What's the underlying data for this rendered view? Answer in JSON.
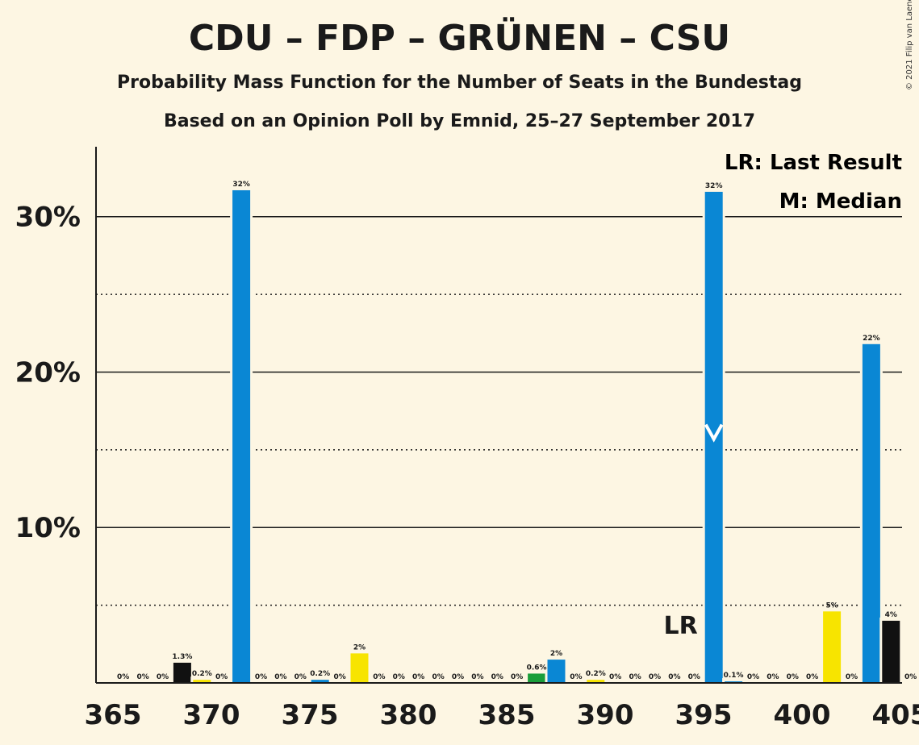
{
  "title": "CDU – FDP – GRÜNEN – CSU",
  "subtitle": "Probability Mass Function for the Number of Seats in the Bundestag",
  "subtitle2": "Based on an Opinion Poll by Emnid, 25–27 September 2017",
  "copyright": "© 2021 Filip van Laenen",
  "legend": {
    "last_result": "LR: Last Result",
    "median": "M: Median"
  },
  "colors": {
    "background": "#fdf6e3",
    "blue": "#0a87d4",
    "black": "#111111",
    "yellow": "#f7e400",
    "green": "#1a9e3a"
  },
  "chart_data": {
    "type": "bar",
    "xlim": [
      365,
      405
    ],
    "ylim": [
      0,
      34.5
    ],
    "x_ticks": [
      365,
      370,
      375,
      380,
      385,
      390,
      395,
      400,
      405
    ],
    "y_ticks": [
      {
        "value": 10,
        "label": "10%"
      },
      {
        "value": 20,
        "label": "20%"
      },
      {
        "value": 30,
        "label": "30%"
      }
    ],
    "y_dotted": [
      5,
      15,
      25
    ],
    "bars": [
      {
        "x": 366,
        "value": 0,
        "label": "0%",
        "color": "blue"
      },
      {
        "x": 367,
        "value": 0,
        "label": "0%",
        "color": "blue"
      },
      {
        "x": 368,
        "value": 0,
        "label": "0%",
        "color": "blue"
      },
      {
        "x": 369,
        "value": 1.3,
        "label": "1.3%",
        "color": "black"
      },
      {
        "x": 370,
        "value": 0.2,
        "label": "0.2%",
        "color": "yellow"
      },
      {
        "x": 371,
        "value": 0,
        "label": "0%",
        "color": "blue"
      },
      {
        "x": 372,
        "value": 31.7,
        "label": "32%",
        "color": "blue"
      },
      {
        "x": 373,
        "value": 0,
        "label": "0%",
        "color": "blue"
      },
      {
        "x": 374,
        "value": 0,
        "label": "0%",
        "color": "blue"
      },
      {
        "x": 375,
        "value": 0,
        "label": "0%",
        "color": "blue"
      },
      {
        "x": 376,
        "value": 0.2,
        "label": "0.2%",
        "color": "blue"
      },
      {
        "x": 377,
        "value": 0,
        "label": "0%",
        "color": "blue"
      },
      {
        "x": 378,
        "value": 1.9,
        "label": "2%",
        "color": "yellow"
      },
      {
        "x": 379,
        "value": 0,
        "label": "0%",
        "color": "blue"
      },
      {
        "x": 380,
        "value": 0,
        "label": "0%",
        "color": "blue"
      },
      {
        "x": 381,
        "value": 0,
        "label": "0%",
        "color": "blue"
      },
      {
        "x": 382,
        "value": 0,
        "label": "0%",
        "color": "blue"
      },
      {
        "x": 383,
        "value": 0,
        "label": "0%",
        "color": "blue"
      },
      {
        "x": 384,
        "value": 0,
        "label": "0%",
        "color": "blue"
      },
      {
        "x": 385,
        "value": 0,
        "label": "0%",
        "color": "blue"
      },
      {
        "x": 386,
        "value": 0,
        "label": "0%",
        "color": "blue"
      },
      {
        "x": 387,
        "value": 0.6,
        "label": "0.6%",
        "color": "green"
      },
      {
        "x": 388,
        "value": 1.5,
        "label": "2%",
        "color": "blue"
      },
      {
        "x": 389,
        "value": 0,
        "label": "0%",
        "color": "blue"
      },
      {
        "x": 390,
        "value": 0.2,
        "label": "0.2%",
        "color": "yellow"
      },
      {
        "x": 391,
        "value": 0,
        "label": "0%",
        "color": "blue"
      },
      {
        "x": 392,
        "value": 0,
        "label": "0%",
        "color": "blue"
      },
      {
        "x": 393,
        "value": 0,
        "label": "0%",
        "color": "blue"
      },
      {
        "x": 394,
        "value": 0,
        "label": "0%",
        "color": "blue"
      },
      {
        "x": 395,
        "value": 0,
        "label": "0%",
        "color": "blue"
      },
      {
        "x": 396,
        "value": 31.6,
        "label": "32%",
        "color": "blue"
      },
      {
        "x": 397,
        "value": 0.1,
        "label": "0.1%",
        "color": "blue"
      },
      {
        "x": 398,
        "value": 0,
        "label": "0%",
        "color": "blue"
      },
      {
        "x": 399,
        "value": 0,
        "label": "0%",
        "color": "blue"
      },
      {
        "x": 400,
        "value": 0,
        "label": "0%",
        "color": "blue"
      },
      {
        "x": 401,
        "value": 0,
        "label": "0%",
        "color": "blue"
      },
      {
        "x": 402,
        "value": 4.6,
        "label": "5%",
        "color": "yellow"
      },
      {
        "x": 403,
        "value": 0,
        "label": "0%",
        "color": "blue"
      },
      {
        "x": 404,
        "value": 21.8,
        "label": "22%",
        "color": "blue"
      },
      {
        "x": 405,
        "value": 4.0,
        "label": "4%",
        "color": "black"
      },
      {
        "x": 406,
        "value": 0,
        "label": "0%",
        "color": "blue"
      }
    ],
    "last_result": {
      "x": 394,
      "label": "LR"
    },
    "median": {
      "x": 396,
      "label": "M"
    }
  }
}
